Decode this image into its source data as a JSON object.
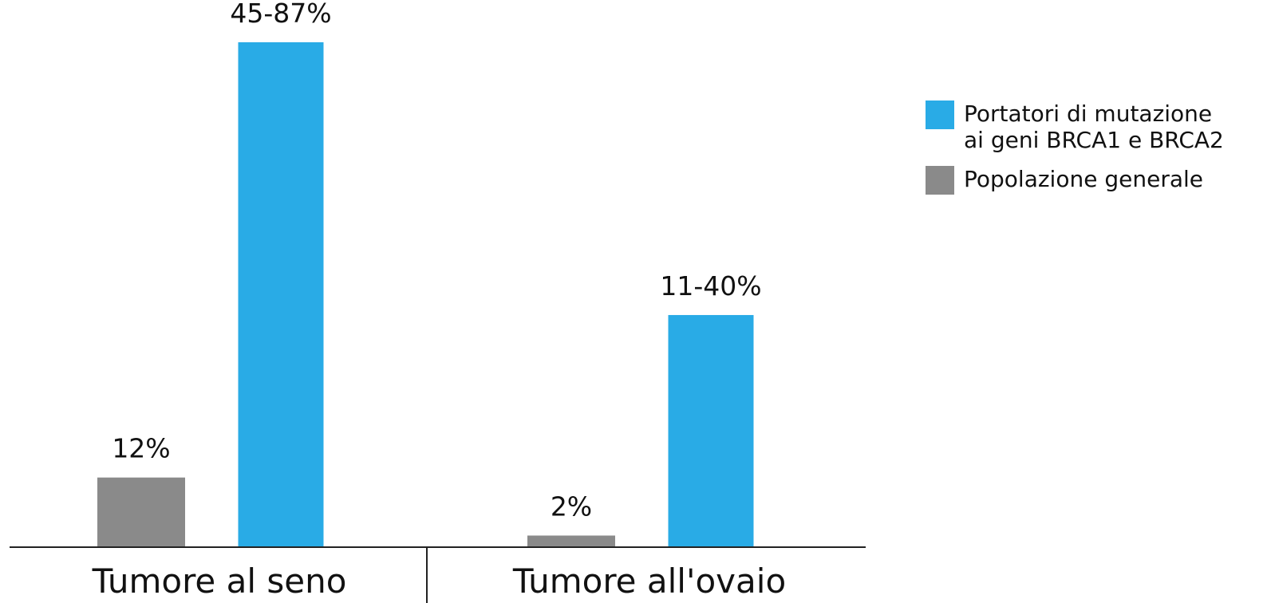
{
  "chart_data": {
    "type": "bar",
    "categories": [
      "Tumore al seno",
      "Tumore all'ovaio"
    ],
    "series": [
      {
        "name": "Popolazione generale",
        "color": "#8a8a8a",
        "values": [
          12,
          2
        ],
        "labels": [
          "12%",
          "2%"
        ]
      },
      {
        "name": "Portatori di mutazione ai geni BRCA1 e BRCA2",
        "color": "#29abe6",
        "values": [
          87,
          40
        ],
        "ranges": [
          [
            45,
            87
          ],
          [
            11,
            40
          ]
        ],
        "labels": [
          "45-87%",
          "11-40%"
        ]
      }
    ],
    "ylim": [
      0,
      87
    ],
    "grid": false,
    "legend_position": "right"
  },
  "legend": {
    "items": [
      {
        "lines": [
          "Portatori di mutazione",
          "ai geni BRCA1 e BRCA2"
        ],
        "color": "#29abe6"
      },
      {
        "lines": [
          "Popolazione generale"
        ],
        "color": "#8a8a8a"
      }
    ]
  }
}
